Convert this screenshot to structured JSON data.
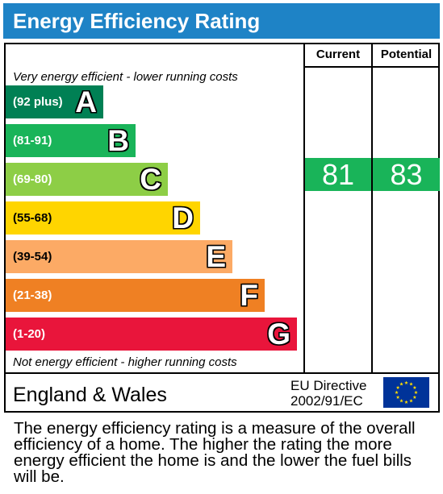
{
  "header": {
    "title": "Energy Efficiency Rating"
  },
  "columns": {
    "current": "Current",
    "potential": "Potential"
  },
  "notes": {
    "top": "Very energy efficient - lower running costs",
    "bottom": "Not energy efficient - higher running costs"
  },
  "chart_data": {
    "type": "bar",
    "title": "Energy Efficiency Rating",
    "bands": [
      {
        "letter": "A",
        "range": "(92 plus)",
        "color": "#008054"
      },
      {
        "letter": "B",
        "range": "(81-91)",
        "color": "#19b459"
      },
      {
        "letter": "C",
        "range": "(69-80)",
        "color": "#8dce46"
      },
      {
        "letter": "D",
        "range": "(55-68)",
        "color": "#ffd500"
      },
      {
        "letter": "E",
        "range": "(39-54)",
        "color": "#fcaa65"
      },
      {
        "letter": "F",
        "range": "(21-38)",
        "color": "#ef8023"
      },
      {
        "letter": "G",
        "range": "(1-20)",
        "color": "#e9153b"
      }
    ],
    "current": {
      "value": 81,
      "band": "B"
    },
    "potential": {
      "value": 83,
      "band": "B"
    }
  },
  "footer": {
    "region": "England & Wales",
    "directive_line1": "EU Directive",
    "directive_line2": "2002/91/EC"
  },
  "description": "The energy efficiency rating is a measure of the overall efficiency of a home. The higher the rating the more energy efficient the home is and the lower the fuel bills will be.",
  "colors": {
    "title_bar": "#1e83c6",
    "eu_flag": "#003399",
    "eu_stars": "#ffdd00"
  }
}
